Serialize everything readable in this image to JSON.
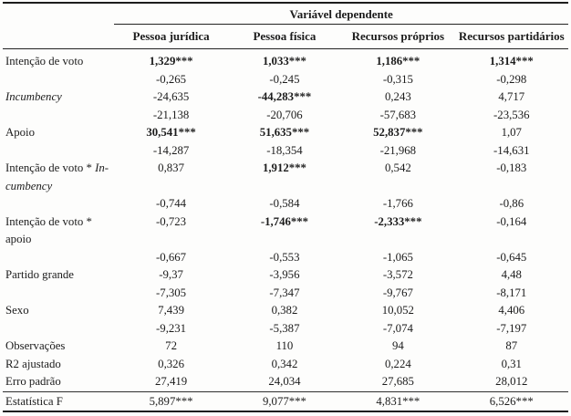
{
  "table": {
    "spanner": "Variável dependente",
    "columns": [
      "Pessoa jurídica",
      "Pessoa física",
      "Recursos próprios",
      "Recursos partidários"
    ],
    "rows": [
      {
        "label": [
          {
            "text": "Intenção de voto",
            "italic": false
          }
        ],
        "cells": [
          {
            "text": "1,329***",
            "bold": true
          },
          {
            "text": "1,033***",
            "bold": true
          },
          {
            "text": "1,186***",
            "bold": true
          },
          {
            "text": "1,314***",
            "bold": true
          }
        ]
      },
      {
        "label": [],
        "kind": "se",
        "cells": [
          {
            "text": "-0,265",
            "bold": false
          },
          {
            "text": "-0,245",
            "bold": false
          },
          {
            "text": "-0,315",
            "bold": false
          },
          {
            "text": "-0,298",
            "bold": false
          }
        ]
      },
      {
        "label": [
          {
            "text": "Incumbency",
            "italic": true
          }
        ],
        "cells": [
          {
            "text": "-24,635",
            "bold": false
          },
          {
            "text": "-44,283***",
            "bold": true
          },
          {
            "text": "0,243",
            "bold": false
          },
          {
            "text": "4,717",
            "bold": false
          }
        ]
      },
      {
        "label": [],
        "kind": "se",
        "cells": [
          {
            "text": "-21,138",
            "bold": false
          },
          {
            "text": "-20,706",
            "bold": false
          },
          {
            "text": "-57,683",
            "bold": false
          },
          {
            "text": "-23,536",
            "bold": false
          }
        ]
      },
      {
        "label": [
          {
            "text": "Apoio",
            "italic": false
          }
        ],
        "cells": [
          {
            "text": "30,541***",
            "bold": true
          },
          {
            "text": "51,635***",
            "bold": true
          },
          {
            "text": "52,837***",
            "bold": true
          },
          {
            "text": "1,07",
            "bold": false
          }
        ]
      },
      {
        "label": [],
        "kind": "se",
        "cells": [
          {
            "text": "-14,287",
            "bold": false
          },
          {
            "text": "-18,354",
            "bold": false
          },
          {
            "text": "-21,968",
            "bold": false
          },
          {
            "text": "-14,631",
            "bold": false
          }
        ]
      },
      {
        "label": [
          {
            "text": "Intenção de voto * ",
            "italic": false
          },
          {
            "text": "In-\ncumbency",
            "italic": true
          }
        ],
        "cells": [
          {
            "text": "0,837",
            "bold": false
          },
          {
            "text": "1,912***",
            "bold": true
          },
          {
            "text": "0,542",
            "bold": false
          },
          {
            "text": "-0,183",
            "bold": false
          }
        ]
      },
      {
        "label": [],
        "kind": "se",
        "cells": [
          {
            "text": "-0,744",
            "bold": false
          },
          {
            "text": "-0,584",
            "bold": false
          },
          {
            "text": "-1,766",
            "bold": false
          },
          {
            "text": "-0,86",
            "bold": false
          }
        ]
      },
      {
        "label": [
          {
            "text": "Intenção de voto *\napoio",
            "italic": false
          }
        ],
        "cells": [
          {
            "text": "-0,723",
            "bold": false
          },
          {
            "text": "-1,746***",
            "bold": true
          },
          {
            "text": "-2,333***",
            "bold": true
          },
          {
            "text": "-0,164",
            "bold": false
          }
        ]
      },
      {
        "label": [],
        "kind": "se",
        "cells": [
          {
            "text": "-0,667",
            "bold": false
          },
          {
            "text": "-0,553",
            "bold": false
          },
          {
            "text": "-1,065",
            "bold": false
          },
          {
            "text": "-0,645",
            "bold": false
          }
        ]
      },
      {
        "label": [
          {
            "text": "Partido grande",
            "italic": false
          }
        ],
        "cells": [
          {
            "text": "-9,37",
            "bold": false
          },
          {
            "text": "-3,956",
            "bold": false
          },
          {
            "text": "-3,572",
            "bold": false
          },
          {
            "text": "4,48",
            "bold": false
          }
        ]
      },
      {
        "label": [],
        "kind": "se",
        "cells": [
          {
            "text": "-7,305",
            "bold": false
          },
          {
            "text": "-7,347",
            "bold": false
          },
          {
            "text": "-9,767",
            "bold": false
          },
          {
            "text": "-8,171",
            "bold": false
          }
        ]
      },
      {
        "label": [
          {
            "text": "Sexo",
            "italic": false
          }
        ],
        "cells": [
          {
            "text": "7,439",
            "bold": false
          },
          {
            "text": "0,382",
            "bold": false
          },
          {
            "text": "10,052",
            "bold": false
          },
          {
            "text": "4,406",
            "bold": false
          }
        ]
      },
      {
        "label": [],
        "kind": "se",
        "cells": [
          {
            "text": "-9,231",
            "bold": false
          },
          {
            "text": "-5,387",
            "bold": false
          },
          {
            "text": "-7,074",
            "bold": false
          },
          {
            "text": "-7,197",
            "bold": false
          }
        ]
      },
      {
        "label": [
          {
            "text": "Observações",
            "italic": false
          }
        ],
        "cells": [
          {
            "text": "72",
            "bold": false
          },
          {
            "text": "110",
            "bold": false
          },
          {
            "text": "94",
            "bold": false
          },
          {
            "text": "87",
            "bold": false
          }
        ]
      },
      {
        "label": [
          {
            "text": "R2 ajustado",
            "italic": false
          }
        ],
        "cells": [
          {
            "text": "0,326",
            "bold": false
          },
          {
            "text": "0,342",
            "bold": false
          },
          {
            "text": "0,224",
            "bold": false
          },
          {
            "text": "0,31",
            "bold": false
          }
        ]
      },
      {
        "label": [
          {
            "text": "Erro padrão",
            "italic": false
          }
        ],
        "cells": [
          {
            "text": "27,419",
            "bold": false
          },
          {
            "text": "24,034",
            "bold": false
          },
          {
            "text": "27,685",
            "bold": false
          },
          {
            "text": "28,012",
            "bold": false
          }
        ]
      },
      {
        "label": [
          {
            "text": "Estatística F",
            "italic": false
          }
        ],
        "rule_above": true,
        "cells": [
          {
            "text": "5,897***",
            "bold": false
          },
          {
            "text": "9,077***",
            "bold": false
          },
          {
            "text": "4,831***",
            "bold": false
          },
          {
            "text": "6,526***",
            "bold": false
          }
        ]
      }
    ]
  }
}
